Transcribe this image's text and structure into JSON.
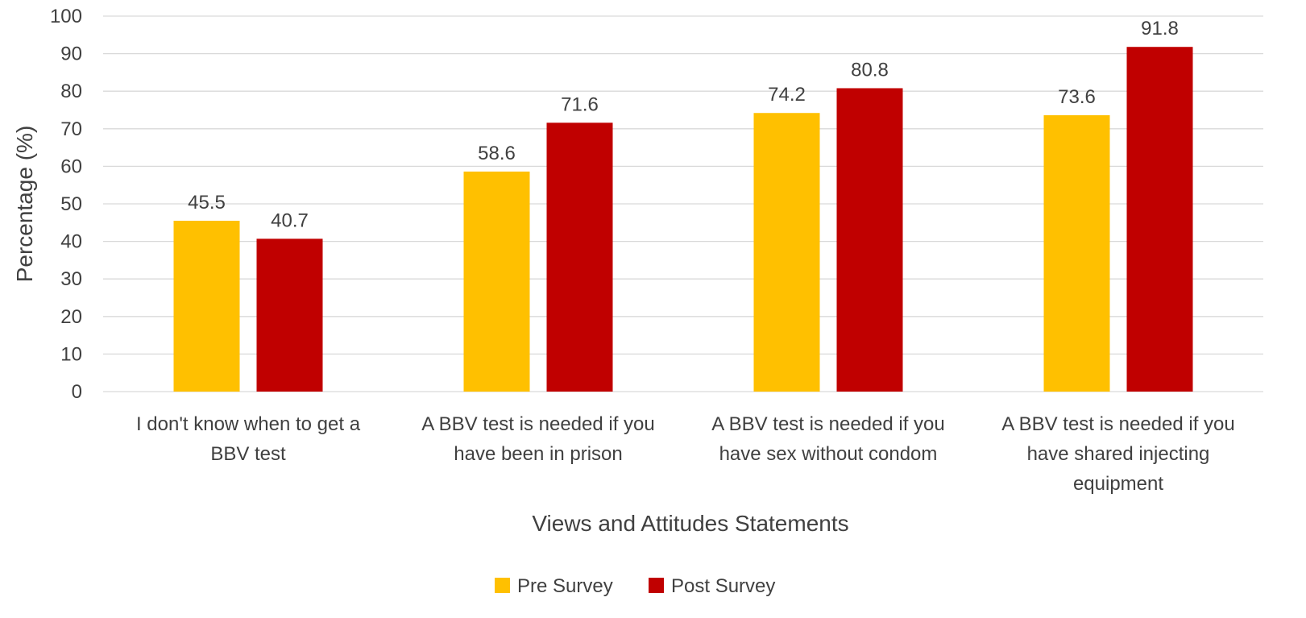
{
  "chart_data": {
    "type": "bar",
    "title": "",
    "xlabel": "Views and Attitudes Statements",
    "ylabel": "Percentage (%)",
    "ylim": [
      0,
      100
    ],
    "yticks": [
      0,
      10,
      20,
      30,
      40,
      50,
      60,
      70,
      80,
      90,
      100
    ],
    "grid": true,
    "legend": "bottom",
    "categories": [
      [
        "I don't know when to get a",
        "BBV test"
      ],
      [
        "A BBV test is needed if you",
        "have been in prison"
      ],
      [
        "A BBV test is needed if you",
        "have sex without condom"
      ],
      [
        "A BBV test is needed if you",
        "have shared injecting",
        "equipment"
      ]
    ],
    "series": [
      {
        "name": "Pre Survey",
        "color": "#FFC000",
        "values": [
          45.5,
          58.6,
          74.2,
          73.6
        ]
      },
      {
        "name": "Post Survey",
        "color": "#C00000",
        "values": [
          40.7,
          71.6,
          80.8,
          91.8
        ]
      }
    ],
    "gridline_color": "#D9D9D9"
  }
}
